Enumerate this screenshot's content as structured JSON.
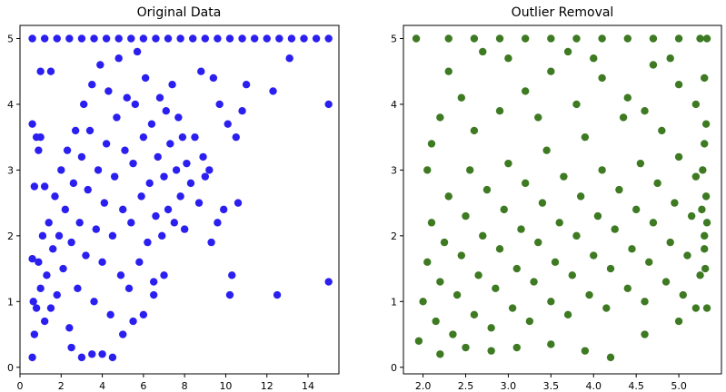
{
  "chart_data": [
    {
      "type": "scatter",
      "title": "Original Data",
      "xlabel": "",
      "ylabel": "",
      "xlim": [
        0.0,
        15.5
      ],
      "ylim": [
        -0.1,
        5.2
      ],
      "xticks": [
        "0",
        "2",
        "4",
        "6",
        "8",
        "10",
        "12",
        "14"
      ],
      "yticks": [
        "0",
        "1",
        "2",
        "3",
        "4",
        "5"
      ],
      "grid": false,
      "color": "#2b1ff0",
      "points": [
        [
          0.6,
          0.15
        ],
        [
          0.7,
          0.5
        ],
        [
          0.8,
          0.9
        ],
        [
          0.9,
          1.6
        ],
        [
          1.0,
          1.2
        ],
        [
          1.1,
          2.0
        ],
        [
          1.2,
          0.7
        ],
        [
          1.3,
          1.4
        ],
        [
          1.4,
          2.2
        ],
        [
          1.5,
          0.9
        ],
        [
          1.6,
          1.8
        ],
        [
          1.7,
          2.6
        ],
        [
          1.8,
          1.1
        ],
        [
          1.9,
          2.0
        ],
        [
          2.0,
          3.0
        ],
        [
          2.1,
          1.5
        ],
        [
          2.2,
          2.4
        ],
        [
          2.3,
          3.3
        ],
        [
          2.4,
          0.6
        ],
        [
          2.5,
          1.9
        ],
        [
          2.6,
          2.8
        ],
        [
          2.7,
          3.6
        ],
        [
          2.8,
          1.2
        ],
        [
          2.9,
          2.2
        ],
        [
          3.0,
          3.2
        ],
        [
          3.1,
          4.0
        ],
        [
          3.2,
          1.7
        ],
        [
          3.3,
          2.7
        ],
        [
          3.4,
          3.6
        ],
        [
          3.5,
          4.3
        ],
        [
          3.6,
          1.0
        ],
        [
          3.7,
          2.1
        ],
        [
          3.8,
          3.0
        ],
        [
          3.9,
          4.6
        ],
        [
          4.0,
          1.6
        ],
        [
          4.1,
          2.5
        ],
        [
          4.2,
          3.4
        ],
        [
          4.3,
          4.2
        ],
        [
          4.4,
          0.8
        ],
        [
          4.5,
          2.0
        ],
        [
          4.6,
          2.9
        ],
        [
          4.7,
          3.8
        ],
        [
          4.8,
          4.7
        ],
        [
          4.9,
          1.4
        ],
        [
          5.0,
          2.4
        ],
        [
          5.1,
          3.3
        ],
        [
          5.2,
          4.1
        ],
        [
          5.3,
          1.2
        ],
        [
          5.4,
          2.2
        ],
        [
          5.5,
          3.1
        ],
        [
          5.6,
          4.0
        ],
        [
          5.7,
          4.8
        ],
        [
          5.8,
          1.6
        ],
        [
          5.9,
          2.6
        ],
        [
          6.0,
          3.5
        ],
        [
          6.1,
          4.4
        ],
        [
          6.2,
          1.9
        ],
        [
          6.3,
          2.8
        ],
        [
          6.4,
          3.7
        ],
        [
          6.5,
          1.3
        ],
        [
          6.6,
          2.3
        ],
        [
          6.7,
          3.2
        ],
        [
          6.8,
          4.1
        ],
        [
          6.9,
          2.0
        ],
        [
          7.0,
          2.9
        ],
        [
          7.1,
          3.9
        ],
        [
          7.2,
          2.4
        ],
        [
          7.3,
          3.4
        ],
        [
          7.4,
          4.3
        ],
        [
          7.5,
          2.2
        ],
        [
          7.6,
          3.0
        ],
        [
          7.7,
          3.8
        ],
        [
          7.8,
          2.6
        ],
        [
          7.9,
          3.5
        ],
        [
          8.0,
          2.1
        ],
        [
          8.1,
          3.1
        ],
        [
          8.3,
          2.8
        ],
        [
          8.5,
          3.5
        ],
        [
          8.7,
          2.5
        ],
        [
          8.9,
          3.2
        ],
        [
          9.0,
          2.9
        ],
        [
          9.3,
          1.9
        ],
        [
          9.6,
          2.2
        ],
        [
          9.9,
          2.4
        ],
        [
          10.2,
          1.1
        ],
        [
          10.3,
          1.4
        ],
        [
          10.6,
          2.5
        ],
        [
          12.5,
          1.1
        ],
        [
          15.0,
          1.3
        ],
        [
          15.0,
          4.0
        ],
        [
          12.3,
          4.2
        ],
        [
          13.1,
          4.7
        ],
        [
          10.5,
          3.5
        ],
        [
          10.1,
          3.7
        ],
        [
          9.4,
          4.4
        ],
        [
          8.8,
          4.5
        ],
        [
          9.7,
          4.0
        ],
        [
          11.0,
          4.3
        ],
        [
          10.8,
          3.9
        ],
        [
          9.2,
          3.0
        ],
        [
          0.6,
          5.0
        ],
        [
          1.2,
          5.0
        ],
        [
          1.8,
          5.0
        ],
        [
          2.4,
          5.0
        ],
        [
          3.0,
          5.0
        ],
        [
          3.6,
          5.0
        ],
        [
          4.2,
          5.0
        ],
        [
          4.8,
          5.0
        ],
        [
          5.4,
          5.0
        ],
        [
          6.0,
          5.0
        ],
        [
          6.6,
          5.0
        ],
        [
          7.2,
          5.0
        ],
        [
          7.8,
          5.0
        ],
        [
          8.4,
          5.0
        ],
        [
          9.0,
          5.0
        ],
        [
          9.6,
          5.0
        ],
        [
          10.2,
          5.0
        ],
        [
          10.8,
          5.0
        ],
        [
          11.4,
          5.0
        ],
        [
          12.0,
          5.0
        ],
        [
          12.6,
          5.0
        ],
        [
          13.2,
          5.0
        ],
        [
          13.8,
          5.0
        ],
        [
          14.4,
          5.0
        ],
        [
          15.0,
          5.0
        ],
        [
          0.6,
          3.7
        ],
        [
          0.8,
          3.5
        ],
        [
          1.0,
          3.5
        ],
        [
          1.2,
          2.75
        ],
        [
          0.7,
          2.75
        ],
        [
          1.0,
          4.5
        ],
        [
          1.5,
          4.5
        ],
        [
          0.9,
          3.3
        ],
        [
          0.6,
          1.65
        ],
        [
          0.65,
          1.0
        ],
        [
          3.0,
          0.15
        ],
        [
          3.5,
          0.2
        ],
        [
          4.0,
          0.2
        ],
        [
          4.5,
          0.15
        ],
        [
          2.5,
          0.3
        ],
        [
          5.0,
          0.5
        ],
        [
          5.5,
          0.7
        ],
        [
          6.0,
          0.8
        ],
        [
          6.5,
          1.1
        ],
        [
          7.0,
          1.4
        ]
      ]
    },
    {
      "type": "scatter",
      "title": "Outlier Removal",
      "xlabel": "",
      "ylabel": "",
      "xlim": [
        1.77,
        5.5
      ],
      "ylim": [
        -0.1,
        5.2
      ],
      "xticks": [
        "2.0",
        "2.5",
        "3.0",
        "3.5",
        "4.0",
        "4.5",
        "5.0"
      ],
      "yticks": [
        "0",
        "1",
        "2",
        "3",
        "4",
        "5"
      ],
      "grid": false,
      "color": "#3e7a22",
      "points": [
        [
          1.95,
          0.4
        ],
        [
          2.0,
          1.0
        ],
        [
          2.05,
          1.6
        ],
        [
          2.1,
          2.2
        ],
        [
          2.15,
          0.7
        ],
        [
          2.2,
          1.3
        ],
        [
          2.25,
          1.9
        ],
        [
          2.3,
          2.6
        ],
        [
          2.35,
          0.5
        ],
        [
          2.4,
          1.1
        ],
        [
          2.45,
          1.7
        ],
        [
          2.5,
          2.3
        ],
        [
          2.55,
          3.0
        ],
        [
          2.6,
          0.8
        ],
        [
          2.65,
          1.4
        ],
        [
          2.7,
          2.0
        ],
        [
          2.75,
          2.7
        ],
        [
          2.8,
          0.6
        ],
        [
          2.85,
          1.2
        ],
        [
          2.9,
          1.8
        ],
        [
          2.95,
          2.4
        ],
        [
          3.0,
          3.1
        ],
        [
          3.05,
          0.9
        ],
        [
          3.1,
          1.5
        ],
        [
          3.15,
          2.1
        ],
        [
          3.2,
          2.8
        ],
        [
          3.25,
          0.7
        ],
        [
          3.3,
          1.3
        ],
        [
          3.35,
          1.9
        ],
        [
          3.4,
          2.5
        ],
        [
          3.45,
          3.3
        ],
        [
          3.5,
          1.0
        ],
        [
          3.55,
          1.6
        ],
        [
          3.6,
          2.2
        ],
        [
          3.65,
          2.9
        ],
        [
          3.7,
          0.8
        ],
        [
          3.75,
          1.4
        ],
        [
          3.8,
          2.0
        ],
        [
          3.85,
          2.6
        ],
        [
          3.9,
          3.5
        ],
        [
          3.95,
          1.1
        ],
        [
          4.0,
          1.7
        ],
        [
          4.05,
          2.3
        ],
        [
          4.1,
          3.0
        ],
        [
          4.15,
          0.9
        ],
        [
          4.2,
          1.5
        ],
        [
          4.25,
          2.1
        ],
        [
          4.3,
          2.7
        ],
        [
          4.35,
          3.8
        ],
        [
          4.4,
          1.2
        ],
        [
          4.45,
          1.8
        ],
        [
          4.5,
          2.4
        ],
        [
          4.55,
          3.1
        ],
        [
          4.6,
          1.0
        ],
        [
          4.65,
          1.6
        ],
        [
          4.7,
          2.2
        ],
        [
          4.75,
          2.8
        ],
        [
          4.8,
          3.6
        ],
        [
          4.85,
          1.3
        ],
        [
          4.9,
          1.9
        ],
        [
          4.95,
          2.5
        ],
        [
          5.0,
          3.2
        ],
        [
          5.05,
          1.1
        ],
        [
          5.1,
          1.7
        ],
        [
          5.15,
          2.3
        ],
        [
          5.2,
          2.9
        ],
        [
          5.25,
          1.4
        ],
        [
          5.3,
          2.0
        ],
        [
          5.32,
          2.6
        ],
        [
          5.33,
          0.9
        ],
        [
          2.6,
          3.6
        ],
        [
          2.9,
          3.9
        ],
        [
          3.2,
          4.2
        ],
        [
          3.5,
          4.5
        ],
        [
          3.8,
          4.0
        ],
        [
          4.1,
          4.4
        ],
        [
          4.4,
          4.1
        ],
        [
          4.7,
          4.6
        ],
        [
          5.0,
          4.3
        ],
        [
          5.3,
          4.4
        ],
        [
          2.3,
          4.5
        ],
        [
          2.45,
          4.1
        ],
        [
          2.7,
          4.8
        ],
        [
          3.0,
          4.7
        ],
        [
          3.35,
          3.8
        ],
        [
          3.7,
          4.8
        ],
        [
          4.0,
          4.7
        ],
        [
          4.6,
          3.9
        ],
        [
          4.9,
          4.7
        ],
        [
          5.2,
          4.0
        ],
        [
          2.1,
          3.4
        ],
        [
          2.2,
          3.8
        ],
        [
          2.05,
          3.0
        ],
        [
          5.3,
          3.4
        ],
        [
          5.28,
          3.0
        ],
        [
          5.33,
          2.2
        ],
        [
          5.31,
          1.5
        ],
        [
          5.3,
          1.8
        ],
        [
          5.27,
          2.4
        ],
        [
          5.32,
          3.7
        ],
        [
          1.92,
          5.0
        ],
        [
          2.3,
          5.0
        ],
        [
          2.6,
          5.0
        ],
        [
          2.9,
          5.0
        ],
        [
          3.2,
          5.0
        ],
        [
          3.5,
          5.0
        ],
        [
          3.8,
          5.0
        ],
        [
          4.1,
          5.0
        ],
        [
          4.4,
          5.0
        ],
        [
          4.7,
          5.0
        ],
        [
          5.0,
          5.0
        ],
        [
          5.25,
          5.0
        ],
        [
          5.33,
          5.0
        ],
        [
          2.2,
          0.2
        ],
        [
          2.5,
          0.3
        ],
        [
          2.8,
          0.25
        ],
        [
          3.1,
          0.3
        ],
        [
          3.5,
          0.35
        ],
        [
          3.9,
          0.25
        ],
        [
          4.2,
          0.15
        ],
        [
          4.6,
          0.5
        ],
        [
          5.0,
          0.7
        ],
        [
          5.2,
          0.9
        ]
      ]
    }
  ]
}
